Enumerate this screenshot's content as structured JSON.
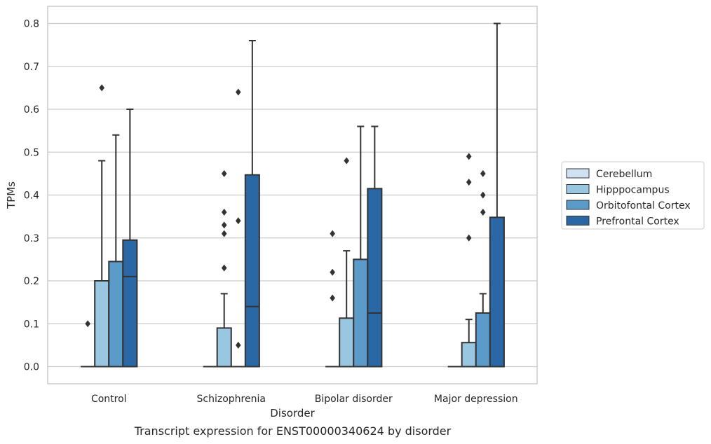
{
  "caption": "Transcript expression for ENST00000340624 by disorder",
  "chart_data": {
    "type": "box",
    "title": "",
    "xlabel": "Disorder",
    "ylabel": "TPMs",
    "ylim": [
      -0.04,
      0.84
    ],
    "yticks": [
      0.0,
      0.1,
      0.2,
      0.3,
      0.4,
      0.5,
      0.6,
      0.7,
      0.8
    ],
    "ytick_labels": [
      "0.0",
      "0.1",
      "0.2",
      "0.3",
      "0.4",
      "0.5",
      "0.6",
      "0.7",
      "0.8"
    ],
    "grid": "horizontal",
    "legend_position": "right",
    "categories": [
      "Control",
      "Schizophrenia",
      "Bipolar disorder",
      "Major depression"
    ],
    "series": [
      {
        "name": "Cerebellum",
        "color": "#d0e1f2",
        "boxes": [
          {
            "q1": 0.0,
            "median": 0.0,
            "q3": 0.0,
            "whisker_low": 0.0,
            "whisker_high": 0.0,
            "outliers": []
          },
          {
            "q1": 0.0,
            "median": 0.0,
            "q3": 0.0,
            "whisker_low": 0.0,
            "whisker_high": 0.0,
            "outliers": []
          },
          {
            "q1": 0.0,
            "median": 0.0,
            "q3": 0.0,
            "whisker_low": 0.0,
            "whisker_high": 0.0,
            "outliers": []
          },
          {
            "q1": 0.0,
            "median": 0.0,
            "q3": 0.0,
            "whisker_low": 0.0,
            "whisker_high": 0.0,
            "outliers": []
          }
        ]
      },
      {
        "name": "Hipppocampus",
        "color": "#9ac7e0",
        "boxes": [
          {
            "q1": 0.0,
            "median": 0.0,
            "q3": 0.2,
            "whisker_low": 0.0,
            "whisker_high": 0.48,
            "outliers": [
              0.65
            ]
          },
          {
            "q1": 0.0,
            "median": 0.0,
            "q3": 0.09,
            "whisker_low": 0.0,
            "whisker_high": 0.17,
            "outliers": [
              0.23,
              0.31,
              0.33,
              0.36,
              0.45
            ]
          },
          {
            "q1": 0.0,
            "median": 0.0,
            "q3": 0.113,
            "whisker_low": 0.0,
            "whisker_high": 0.27,
            "outliers": [
              0.48
            ]
          },
          {
            "q1": 0.0,
            "median": 0.0,
            "q3": 0.056,
            "whisker_low": 0.0,
            "whisker_high": 0.11,
            "outliers": [
              0.3,
              0.43,
              0.49
            ]
          }
        ]
      },
      {
        "name": "Orbitofontal Cortex",
        "color": "#5b9bc9",
        "boxes": [
          {
            "q1": 0.0,
            "median": 0.0,
            "q3": 0.245,
            "whisker_low": 0.0,
            "whisker_high": 0.54,
            "outliers": []
          },
          {
            "q1": 0.0,
            "median": 0.0,
            "q3": 0.0,
            "whisker_low": 0.0,
            "whisker_high": 0.0,
            "outliers": [
              0.05,
              0.34,
              0.64
            ]
          },
          {
            "q1": 0.0,
            "median": 0.0,
            "q3": 0.25,
            "whisker_low": 0.0,
            "whisker_high": 0.56,
            "outliers": []
          },
          {
            "q1": 0.0,
            "median": 0.0,
            "q3": 0.125,
            "whisker_low": 0.0,
            "whisker_high": 0.17,
            "outliers": [
              0.36,
              0.4,
              0.45
            ]
          }
        ]
      },
      {
        "name": "Prefrontal Cortex",
        "color": "#2a67a5",
        "boxes": [
          {
            "q1": 0.0,
            "median": 0.21,
            "q3": 0.295,
            "whisker_low": 0.0,
            "whisker_high": 0.6,
            "outliers": []
          },
          {
            "q1": 0.0,
            "median": 0.14,
            "q3": 0.447,
            "whisker_low": 0.0,
            "whisker_high": 0.76,
            "outliers": []
          },
          {
            "q1": 0.0,
            "median": 0.125,
            "q3": 0.415,
            "whisker_low": 0.0,
            "whisker_high": 0.56,
            "outliers": []
          },
          {
            "q1": 0.0,
            "median": 0.0,
            "q3": 0.348,
            "whisker_low": 0.0,
            "whisker_high": 0.8,
            "outliers": []
          }
        ]
      }
    ],
    "extra_outliers_cerebellum": [
      {
        "category": "Control",
        "values": [
          0.1
        ]
      },
      {
        "category": "Bipolar disorder",
        "values": [
          0.16,
          0.22,
          0.31
        ]
      }
    ]
  }
}
